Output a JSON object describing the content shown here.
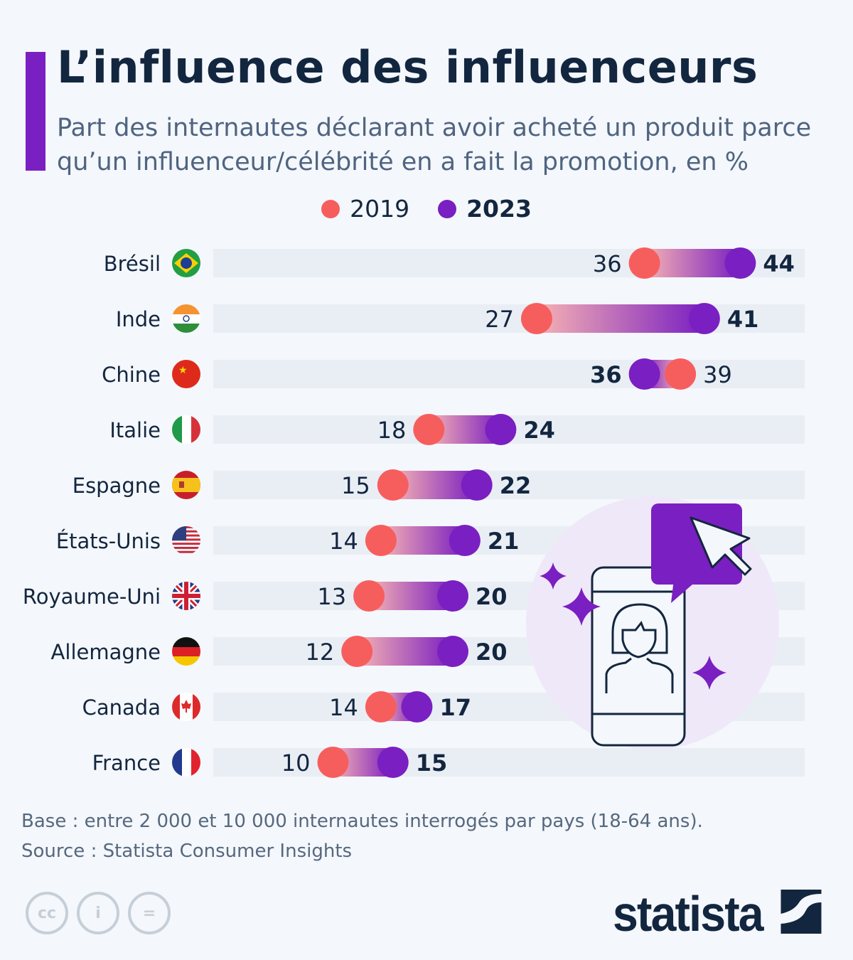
{
  "title": "L’influence des influenceurs",
  "subtitle": "Part des internautes déclarant avoir acheté un produit parce qu’un influenceur/célébrité en a fait la promotion, en %",
  "colors": {
    "y2019": "#f65e5d",
    "y2023": "#7a1fc1",
    "track": "#e9eef5",
    "accent": "#7a1fc1"
  },
  "chart_data": {
    "type": "dumbbell",
    "unit": "%",
    "series": [
      {
        "name": "2019"
      },
      {
        "name": "2023"
      }
    ],
    "legend": "top-center",
    "xlim": [
      0,
      50
    ],
    "categories": [
      "Brésil",
      "Inde",
      "Chine",
      "Italie",
      "Espagne",
      "États-Unis",
      "Royaume-Uni",
      "Allemagne",
      "Canada",
      "France"
    ],
    "flags": [
      "brazil",
      "india",
      "china",
      "italy",
      "spain",
      "usa",
      "uk",
      "germany",
      "canada",
      "france"
    ],
    "values_2019": [
      36,
      27,
      39,
      18,
      15,
      14,
      13,
      12,
      14,
      10
    ],
    "values_2023": [
      44,
      41,
      36,
      24,
      22,
      21,
      20,
      20,
      17,
      15
    ]
  },
  "footer": {
    "base": "Base : entre 2 000 et 10 000 internautes interrogés par pays (18-64 ans).",
    "source": "Source : Statista Consumer Insights",
    "logo": "statista"
  },
  "icons": [
    "cc-icon",
    "attribution-icon",
    "no-derivatives-icon",
    "influencer-phone-illustration"
  ]
}
